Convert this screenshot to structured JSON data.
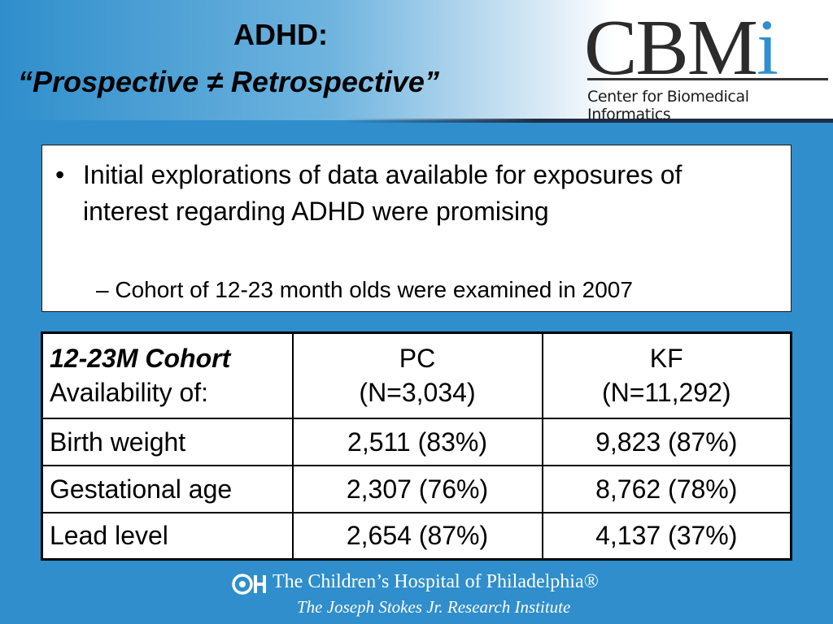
{
  "slide": {
    "title_line1": "ADHD:",
    "title_line2": "“Prospective ≠ Retrospective”"
  },
  "logo": {
    "letters": "CBM",
    "letter_i": "i",
    "subtitle": "Center for Biomedical Informatics"
  },
  "content": {
    "bullet_mark": "•",
    "bullet": "Initial explorations of data available for exposures of interest regarding ADHD were promising",
    "sub_bullet": "– Cohort of 12-23 month olds were examined in 2007"
  },
  "table": {
    "header": {
      "cohort": "12-23M Cohort",
      "availability": "Availability of:",
      "col2_name": "PC",
      "col2_n": "(N=3,034)",
      "col3_name": "KF",
      "col3_n": "(N=11,292)"
    },
    "rows": [
      {
        "label": "Birth weight",
        "pc": "2,511 (83%)",
        "kf": "9,823 (87%)"
      },
      {
        "label": "Gestational age",
        "pc": "2,307 (76%)",
        "kf": "8,762 (78%)"
      },
      {
        "label": "Lead level",
        "pc": "2,654 (87%)",
        "kf": "4,137 (37%)"
      }
    ]
  },
  "footer": {
    "line1": "The Children’s Hospital of Philadelphia®",
    "line2": "The Joseph Stokes Jr. Research Institute"
  },
  "colors": {
    "background": "#2f8ecb",
    "logo_accent": "#2e8fcf"
  }
}
